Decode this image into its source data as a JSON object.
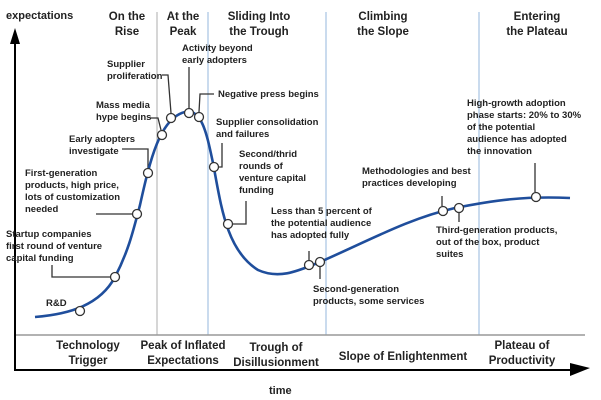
{
  "axes": {
    "y_label": "expectations",
    "x_label": "time"
  },
  "stage_headers": [
    {
      "lines": [
        "On the",
        "Rise"
      ]
    },
    {
      "lines": [
        "At the",
        "Peak"
      ]
    },
    {
      "lines": [
        "Sliding Into",
        "the Trough"
      ]
    },
    {
      "lines": [
        "Climbing",
        "the Slope"
      ]
    },
    {
      "lines": [
        "Entering",
        "the Plateau"
      ]
    }
  ],
  "phases": [
    {
      "lines": [
        "Technology",
        "Trigger"
      ]
    },
    {
      "lines": [
        "Peak of Inflated",
        "Expectations"
      ]
    },
    {
      "lines": [
        "Trough of",
        "Disillusionment"
      ]
    },
    {
      "lines": [
        "Slope of Enlightenment"
      ]
    },
    {
      "lines": [
        "Plateau of",
        "Productivity"
      ]
    }
  ],
  "milestones": [
    {
      "lines": [
        "R&D"
      ]
    },
    {
      "lines": [
        "Startup companies",
        "first round of venture",
        "capital funding"
      ]
    },
    {
      "lines": [
        "First-generation",
        "products, high price,",
        "lots of customization",
        "needed"
      ]
    },
    {
      "lines": [
        "Early adopters",
        "investigate"
      ]
    },
    {
      "lines": [
        "Mass media",
        "hype begins"
      ]
    },
    {
      "lines": [
        "Supplier",
        "proliferation"
      ]
    },
    {
      "lines": [
        "Activity beyond",
        "early adopters"
      ]
    },
    {
      "lines": [
        "Negative press begins"
      ]
    },
    {
      "lines": [
        "Supplier consolidation",
        "and failures"
      ]
    },
    {
      "lines": [
        "Second/thrid",
        "rounds of",
        "venture capital",
        "funding"
      ]
    },
    {
      "lines": [
        "Less than 5 percent of",
        "the potential audience",
        "has adopted fully"
      ]
    },
    {
      "lines": [
        "Second-generation",
        "products, some services"
      ]
    },
    {
      "lines": [
        "Methodologies and best",
        "practices developing"
      ]
    },
    {
      "lines": [
        "Third-generation products,",
        "out of the box, product",
        "suites"
      ]
    },
    {
      "lines": [
        "High-growth adoption",
        "phase starts: 20% to 30%",
        "of the potential",
        "audience has adopted",
        "the innovation"
      ]
    }
  ],
  "colors": {
    "curve": "#1f4e9c",
    "stage_divider": "#b8cfe8",
    "first_divider": "#c8c8c8",
    "text": "#222222",
    "axis": "#000000"
  }
}
